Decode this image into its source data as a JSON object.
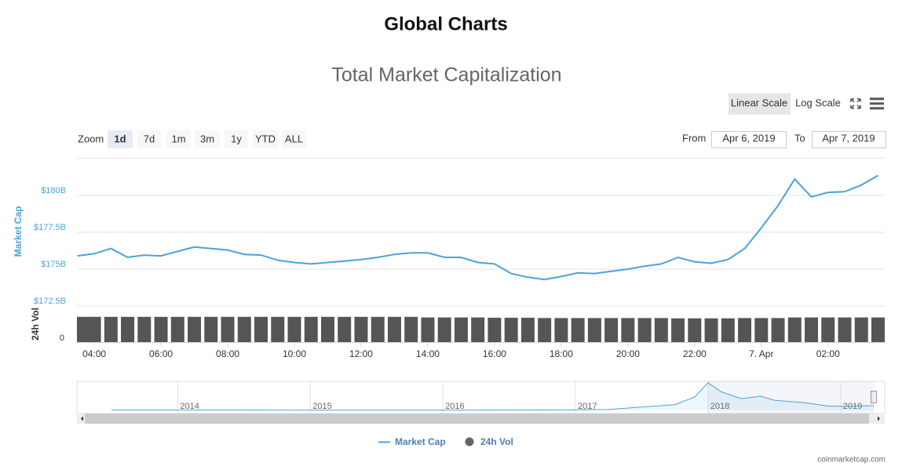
{
  "page": {
    "title": "Global Charts",
    "credit": "coinmarketcap.com"
  },
  "toolbar": {
    "scales": [
      "Linear Scale",
      "Log Scale"
    ],
    "zoom_label": "Zoom",
    "zoom": [
      "1d",
      "7d",
      "1m",
      "3m",
      "1y",
      "YTD",
      "ALL"
    ],
    "from_label": "From",
    "from": "Apr 6, 2019",
    "to_label": "To",
    "to": "Apr 7, 2019"
  },
  "chart_data": [
    {
      "type": "line",
      "title": "Total Market Capitalization",
      "ylabel": "Market Cap",
      "y2label": "24h Vol",
      "x": [
        3.5,
        4,
        4.5,
        5,
        5.5,
        6,
        6.5,
        7,
        7.5,
        8,
        8.5,
        9,
        9.5,
        10,
        10.5,
        11,
        11.5,
        12,
        12.5,
        13,
        13.5,
        14,
        14.5,
        15,
        15.5,
        16,
        16.5,
        17,
        17.5,
        18,
        18.5,
        19,
        19.5,
        20,
        20.5,
        21,
        21.5,
        22,
        22.5,
        23,
        23.5,
        24,
        24.5,
        25,
        25.5,
        26,
        26.5,
        27,
        27.5
      ],
      "series": [
        {
          "name": "Market Cap",
          "color": "#4aa3d8",
          "type": "line",
          "values": [
            175.9,
            176.05,
            176.4,
            175.8,
            175.95,
            175.9,
            176.2,
            176.5,
            176.4,
            176.3,
            176.0,
            175.95,
            175.6,
            175.45,
            175.35,
            175.45,
            175.55,
            175.65,
            175.8,
            176.0,
            176.1,
            176.1,
            175.8,
            175.8,
            175.45,
            175.35,
            174.7,
            174.45,
            174.3,
            174.5,
            174.75,
            174.7,
            174.85,
            175.0,
            175.2,
            175.35,
            175.8,
            175.5,
            175.4,
            175.65,
            176.4,
            177.8,
            179.3,
            181.1,
            179.9,
            180.2,
            180.25,
            180.7,
            181.35
          ]
        },
        {
          "name": "24h Vol",
          "color": "#555555",
          "type": "bar",
          "axis": "y2",
          "values": [
            42,
            42,
            42,
            42,
            42,
            42,
            42,
            42,
            42,
            42,
            42,
            42,
            42,
            42,
            42,
            42,
            42,
            42,
            42,
            42,
            42,
            41,
            41,
            41,
            41,
            40.5,
            40.5,
            40.5,
            40,
            40,
            40,
            40,
            40,
            40,
            40,
            40,
            39.5,
            39.5,
            39.5,
            39.5,
            40,
            40,
            40,
            41,
            41,
            41,
            41,
            41,
            41
          ]
        }
      ],
      "xlim": [
        3.48,
        27.7
      ],
      "xticks": [
        {
          "value": 4,
          "label": "04:00"
        },
        {
          "value": 6,
          "label": "06:00"
        },
        {
          "value": 8,
          "label": "08:00"
        },
        {
          "value": 10,
          "label": "10:00"
        },
        {
          "value": 12,
          "label": "12:00"
        },
        {
          "value": 14,
          "label": "14:00"
        },
        {
          "value": 16,
          "label": "16:00"
        },
        {
          "value": 18,
          "label": "18:00"
        },
        {
          "value": 20,
          "label": "20:00"
        },
        {
          "value": 22,
          "label": "22:00"
        },
        {
          "value": 24,
          "label": "7. Apr"
        },
        {
          "value": 26,
          "label": "02:00"
        }
      ],
      "ylim": [
        172.5,
        182.5
      ],
      "yticks": [
        {
          "value": 172.5,
          "label": "$172.5B"
        },
        {
          "value": 175,
          "label": "$175B"
        },
        {
          "value": 177.5,
          "label": "$177.5B"
        },
        {
          "value": 180,
          "label": "$180B"
        }
      ],
      "y2lim": [
        0,
        60
      ],
      "y2ticks": [
        0
      ],
      "grid": true,
      "legend": "bottom"
    },
    {
      "type": "area",
      "x": [
        2013.5,
        2014,
        2014.5,
        2015,
        2015.5,
        2016,
        2016.5,
        2017,
        2017.25,
        2017.5,
        2017.75,
        2017.9,
        2018,
        2018.1,
        2018.25,
        2018.4,
        2018.5,
        2018.75,
        2018.9,
        2019,
        2019.25
      ],
      "values": [
        10,
        10,
        10,
        5,
        5,
        7,
        10,
        18,
        25,
        100,
        170,
        400,
        820,
        550,
        350,
        420,
        300,
        220,
        130,
        120,
        140
      ],
      "color": "#4aa3d8",
      "xlim": [
        2013.24,
        2019.25
      ],
      "xticks": [
        2014,
        2015,
        2016,
        2017,
        2018,
        2019
      ],
      "ylim": [
        0,
        840
      ]
    }
  ]
}
